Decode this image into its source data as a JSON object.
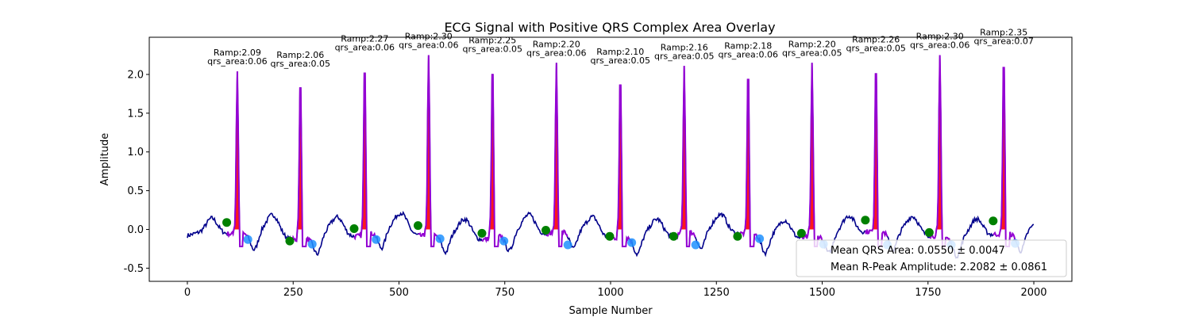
{
  "chart_data": {
    "type": "line",
    "title": "ECG Signal with Positive QRS Complex Area Overlay",
    "xlabel": "Sample Number",
    "ylabel": "Amplitude",
    "xlim": [
      -90,
      2090
    ],
    "ylim": [
      -0.67,
      2.48
    ],
    "x_ticks": [
      0,
      250,
      500,
      750,
      1000,
      1250,
      1500,
      1750,
      2000
    ],
    "y_ticks": [
      -0.5,
      0.0,
      0.5,
      1.0,
      1.5,
      2.0
    ],
    "colors": {
      "signal": "#00008b",
      "qrs_line": "#9400d3",
      "qrs_fill": "#ff0000",
      "q_point": "#008000",
      "s_point": "#1e90ff"
    },
    "beats": [
      {
        "r_x": 118,
        "r_amp": 2.09,
        "qrs_area": 0.06,
        "label": "Ramp:2.09\nqrs_area:0.06",
        "q": [
          93,
          0.09
        ],
        "s": [
          143,
          -0.13
        ]
      },
      {
        "r_x": 267,
        "r_amp": 2.06,
        "qrs_area": 0.05,
        "label": "Ramp:2.06\nqrs_area:0.05",
        "q": [
          242,
          -0.15
        ],
        "s": [
          295,
          -0.19
        ]
      },
      {
        "r_x": 419,
        "r_amp": 2.27,
        "qrs_area": 0.06,
        "label": "Ramp:2.27\nqrs_area:0.06",
        "q": [
          394,
          0.01
        ],
        "s": [
          446,
          -0.13
        ]
      },
      {
        "r_x": 570,
        "r_amp": 2.3,
        "qrs_area": 0.06,
        "label": "Ramp:2.30\nqrs_area:0.06",
        "q": [
          545,
          0.05
        ],
        "s": [
          597,
          -0.12
        ]
      },
      {
        "r_x": 721,
        "r_amp": 2.25,
        "qrs_area": 0.05,
        "label": "Ramp:2.25\nqrs_area:0.05",
        "q": [
          696,
          -0.05
        ],
        "s": [
          748,
          -0.15
        ]
      },
      {
        "r_x": 872,
        "r_amp": 2.2,
        "qrs_area": 0.06,
        "label": "Ramp:2.20\nqrs_area:0.06",
        "q": [
          847,
          -0.01
        ],
        "s": [
          899,
          -0.2
        ]
      },
      {
        "r_x": 1023,
        "r_amp": 2.1,
        "qrs_area": 0.05,
        "label": "Ramp:2.10\nqrs_area:0.05",
        "q": [
          998,
          -0.09
        ],
        "s": [
          1050,
          -0.17
        ]
      },
      {
        "r_x": 1174,
        "r_amp": 2.16,
        "qrs_area": 0.05,
        "label": "Ramp:2.16\nqrs_area:0.05",
        "q": [
          1149,
          -0.09
        ],
        "s": [
          1201,
          -0.2
        ]
      },
      {
        "r_x": 1325,
        "r_amp": 2.18,
        "qrs_area": 0.06,
        "label": "Ramp:2.18\nqrs_area:0.06",
        "q": [
          1300,
          -0.09
        ],
        "s": [
          1352,
          -0.12
        ]
      },
      {
        "r_x": 1476,
        "r_amp": 2.2,
        "qrs_area": 0.05,
        "label": "Ramp:2.20\nqrs_area:0.05",
        "q": [
          1451,
          -0.05
        ],
        "s": [
          1503,
          -0.19
        ]
      },
      {
        "r_x": 1627,
        "r_amp": 2.26,
        "qrs_area": 0.05,
        "label": "Ramp:2.26\nqrs_area:0.05",
        "q": [
          1602,
          0.12
        ],
        "s": [
          1654,
          -0.2
        ]
      },
      {
        "r_x": 1778,
        "r_amp": 2.3,
        "qrs_area": 0.06,
        "label": "Ramp:2.30\nqrs_area:0.06",
        "q": [
          1753,
          -0.04
        ],
        "s": [
          1805,
          -0.2
        ]
      },
      {
        "r_x": 1929,
        "r_amp": 2.35,
        "qrs_area": 0.07,
        "label": "Ramp:2.35\nqrs_area:0.07",
        "q": [
          1904,
          0.11
        ],
        "s": [
          1956,
          -0.18
        ]
      }
    ],
    "legend": {
      "position": "lower right",
      "entries": [
        "Mean QRS Area: 0.0550 ± 0.0047",
        "Mean R-Peak Amplitude: 2.2082 ± 0.0861"
      ]
    }
  }
}
